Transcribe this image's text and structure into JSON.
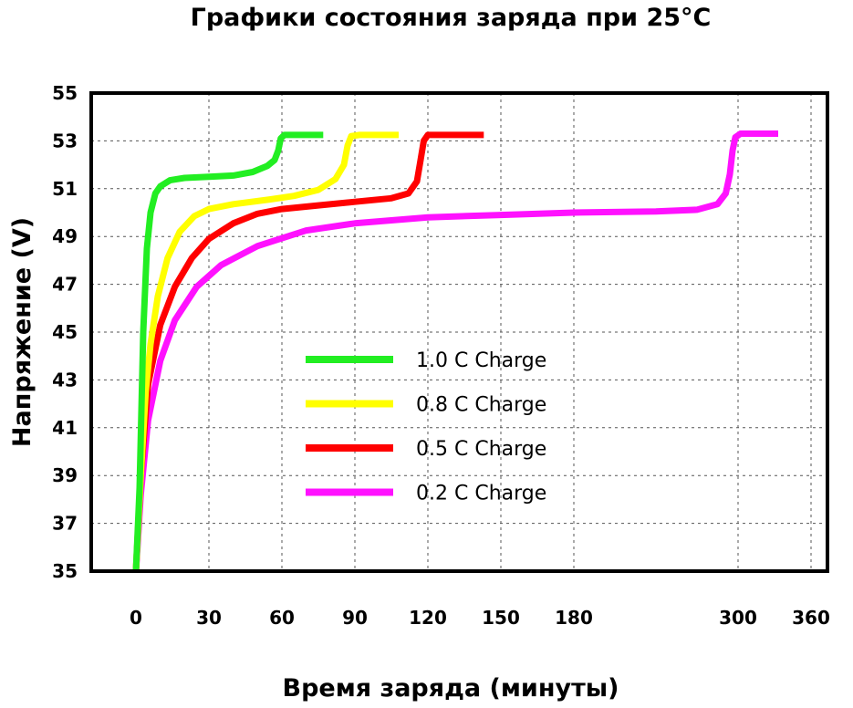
{
  "chart_data": {
    "type": "line",
    "title": "Графики состояния заряда при 25°C",
    "xlabel": "Время заряда (минуты)",
    "ylabel": "Напряжение (V)",
    "x_ticks": [
      "0",
      "30",
      "60",
      "90",
      "120",
      "150",
      "180",
      "300",
      "360"
    ],
    "y_ticks": [
      "55",
      "53",
      "51",
      "49",
      "47",
      "45",
      "43",
      "41",
      "39",
      "37",
      "35"
    ],
    "ylim": [
      35,
      55
    ],
    "grid": true,
    "legend_position": "center",
    "series": [
      {
        "name": "1.0 C  Charge",
        "color": "#22ee22",
        "points": [
          [
            0,
            35
          ],
          [
            1.5,
            38.5
          ],
          [
            3,
            45
          ],
          [
            4.5,
            48.5
          ],
          [
            6,
            50
          ],
          [
            8,
            50.8
          ],
          [
            10,
            51.1
          ],
          [
            14,
            51.35
          ],
          [
            20,
            51.45
          ],
          [
            30,
            51.5
          ],
          [
            40,
            51.55
          ],
          [
            48,
            51.7
          ],
          [
            54,
            51.95
          ],
          [
            57,
            52.2
          ],
          [
            58.5,
            52.6
          ],
          [
            59.5,
            53.1
          ],
          [
            61,
            53.25
          ],
          [
            65,
            53.25
          ],
          [
            77,
            53.25
          ]
        ]
      },
      {
        "name": "0.8 C  Charge",
        "color": "#ffff00",
        "points": [
          [
            0,
            35
          ],
          [
            2,
            39
          ],
          [
            4,
            42.5
          ],
          [
            6,
            44.5
          ],
          [
            9,
            46.5
          ],
          [
            13,
            48.1
          ],
          [
            18,
            49.2
          ],
          [
            24,
            49.85
          ],
          [
            30,
            50.15
          ],
          [
            40,
            50.35
          ],
          [
            55,
            50.55
          ],
          [
            65,
            50.7
          ],
          [
            75,
            50.95
          ],
          [
            82,
            51.4
          ],
          [
            85.5,
            52
          ],
          [
            87,
            52.8
          ],
          [
            88.5,
            53.2
          ],
          [
            92,
            53.25
          ],
          [
            108,
            53.25
          ]
        ]
      },
      {
        "name": "0.5 C  Charge",
        "color": "#ff0000",
        "points": [
          [
            0,
            35
          ],
          [
            2,
            39
          ],
          [
            5,
            42.8
          ],
          [
            10,
            45.3
          ],
          [
            16,
            46.9
          ],
          [
            23,
            48.1
          ],
          [
            30,
            48.9
          ],
          [
            40,
            49.55
          ],
          [
            50,
            49.95
          ],
          [
            60,
            50.15
          ],
          [
            75,
            50.3
          ],
          [
            90,
            50.45
          ],
          [
            105,
            50.6
          ],
          [
            112,
            50.8
          ],
          [
            115.5,
            51.3
          ],
          [
            117,
            52.2
          ],
          [
            118.3,
            53
          ],
          [
            120,
            53.25
          ],
          [
            125,
            53.25
          ],
          [
            143,
            53.25
          ]
        ]
      },
      {
        "name": "0.2 C  Charge",
        "color": "#ff11ff",
        "points": [
          [
            0,
            35
          ],
          [
            2,
            38.2
          ],
          [
            5,
            41.3
          ],
          [
            10,
            43.8
          ],
          [
            16,
            45.5
          ],
          [
            25,
            46.9
          ],
          [
            35,
            47.8
          ],
          [
            50,
            48.6
          ],
          [
            70,
            49.25
          ],
          [
            90,
            49.55
          ],
          [
            120,
            49.8
          ],
          [
            150,
            49.9
          ],
          [
            180,
            50
          ],
          [
            240,
            50.05
          ],
          [
            270,
            50.12
          ],
          [
            285,
            50.35
          ],
          [
            291,
            50.8
          ],
          [
            294,
            51.6
          ],
          [
            296,
            52.6
          ],
          [
            298,
            53.15
          ],
          [
            302,
            53.3
          ],
          [
            315,
            53.3
          ],
          [
            333,
            53.3
          ]
        ]
      }
    ]
  }
}
